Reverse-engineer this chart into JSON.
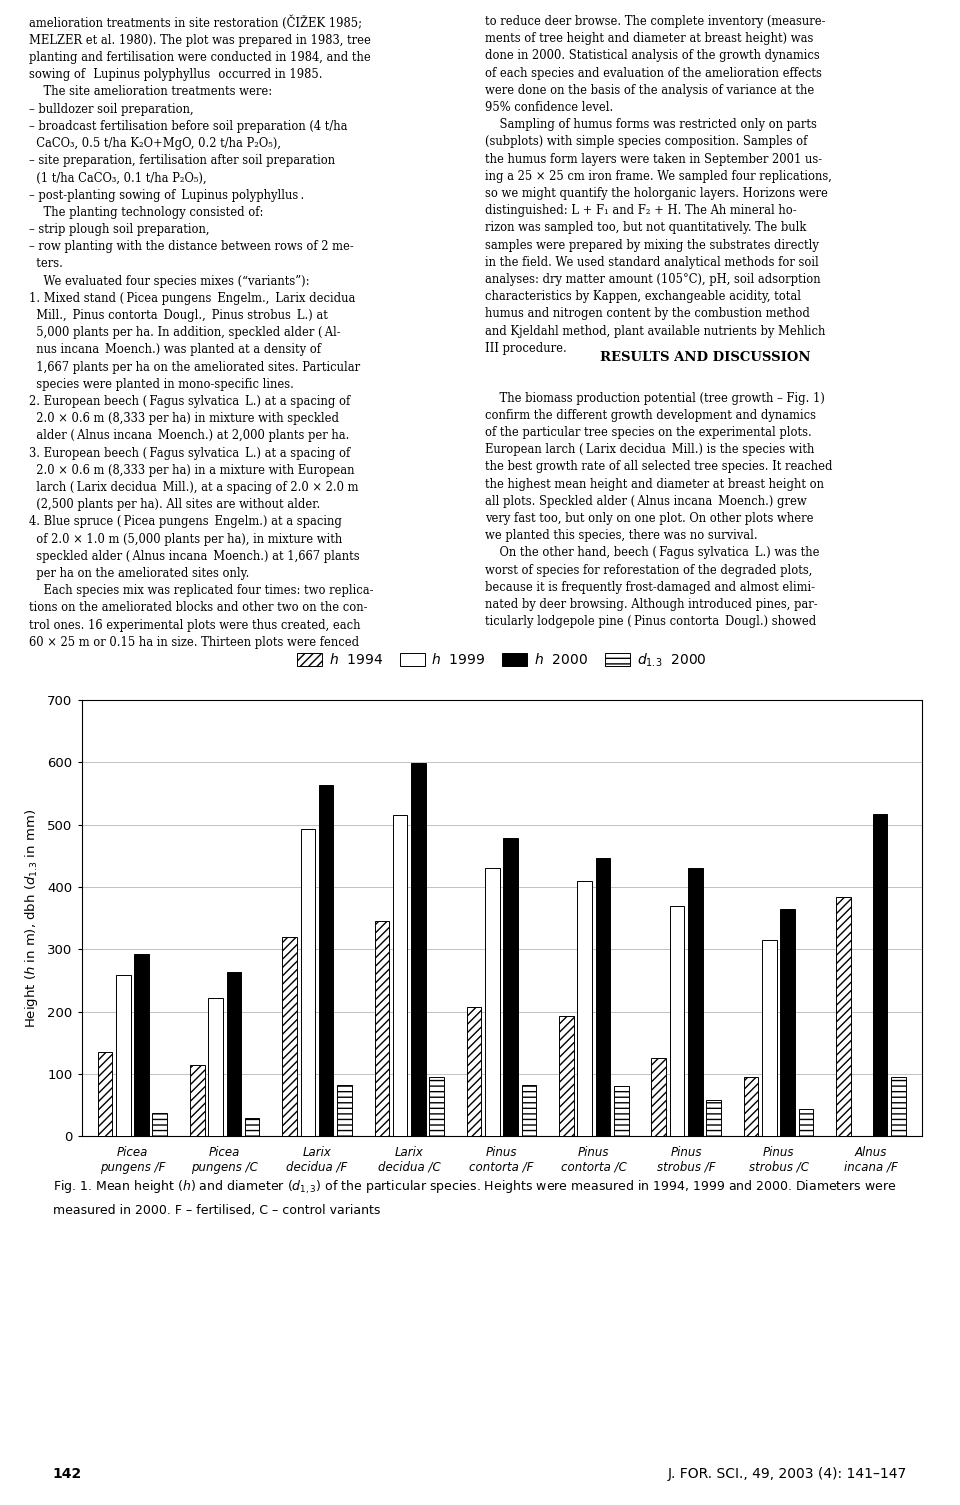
{
  "groups": [
    "Picea\npungens /F",
    "Picea\npungens /C",
    "Larix\ndecidua /F",
    "Larix\ndecidua /C",
    "Pinus\ncontorta /F",
    "Pinus\ncontorta /C",
    "Pinus\nstrobus /F",
    "Pinus\nstrobus /C",
    "Alnus\nincana /F"
  ],
  "h1994": [
    135,
    115,
    320,
    345,
    207,
    193,
    125,
    95,
    383
  ],
  "h1999": [
    258,
    222,
    493,
    515,
    430,
    410,
    370,
    315,
    0
  ],
  "h2000": [
    293,
    263,
    563,
    598,
    478,
    447,
    430,
    365,
    517
  ],
  "d2000": [
    38,
    30,
    83,
    95,
    83,
    80,
    58,
    43,
    95
  ],
  "ylim": [
    0,
    700
  ],
  "yticks": [
    0,
    100,
    200,
    300,
    400,
    500,
    600,
    700
  ],
  "figsize": [
    9.6,
    15.05
  ],
  "dpi": 100,
  "page_left": "142",
  "page_right": "J. FOR. SCI., 49, 2003 (4): 141–147"
}
